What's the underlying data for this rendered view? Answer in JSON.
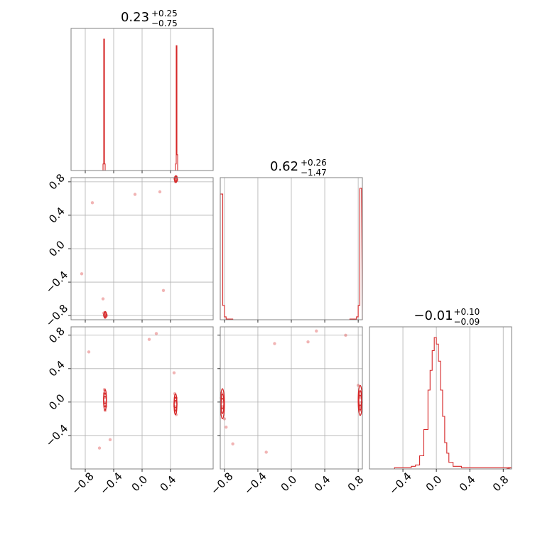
{
  "chart_data": {
    "type": "corner",
    "series_color": "#d62728",
    "grid": true,
    "panels": [
      {
        "role": "histogram-param-1",
        "type": "histogram",
        "title": {
          "value": "0.23",
          "plus": "+0.25",
          "minus": "−0.75"
        },
        "xlim": [
          -1.0,
          1.0
        ],
        "bins_x": [
          -0.56,
          -0.55,
          -0.54,
          -0.53,
          -0.52,
          -0.51,
          0.46,
          0.47,
          0.48,
          0.49,
          0.5,
          0.51
        ],
        "counts": [
          0,
          0.05,
          1.0,
          0.05,
          0.0,
          0.0,
          0.0,
          0.05,
          0.95,
          0.12,
          0.0,
          0.0
        ]
      },
      {
        "role": "scatter-param-2-vs-param-1",
        "type": "scatter",
        "xlim": [
          -1.0,
          1.0
        ],
        "ylim": [
          -0.85,
          0.85
        ],
        "y_ticks": [
          "0.8",
          "0.4",
          "0.0",
          "−0.4",
          "−0.8"
        ],
        "y_tick_values": [
          0.8,
          0.4,
          0.0,
          -0.4,
          -0.8
        ],
        "points": [
          [
            -0.52,
            -0.78
          ],
          [
            -0.53,
            -0.8
          ],
          [
            -0.51,
            -0.79
          ],
          [
            -0.52,
            -0.81
          ],
          [
            -0.54,
            -0.77
          ],
          [
            -0.5,
            -0.8
          ],
          [
            0.47,
            0.85
          ],
          [
            0.48,
            0.83
          ],
          [
            0.46,
            0.84
          ],
          [
            0.48,
            0.86
          ],
          [
            0.49,
            0.82
          ],
          [
            0.47,
            0.8
          ],
          [
            -0.7,
            0.55
          ],
          [
            -0.1,
            0.65
          ],
          [
            0.25,
            0.68
          ],
          [
            -0.55,
            -0.6
          ],
          [
            0.3,
            -0.5
          ],
          [
            -0.85,
            -0.3
          ]
        ]
      },
      {
        "role": "histogram-param-2",
        "type": "histogram",
        "title": {
          "value": "0.62",
          "plus": "+0.26",
          "minus": "−1.47"
        },
        "xlim": [
          -0.85,
          0.85
        ],
        "bins_x": [
          -0.85,
          -0.82,
          -0.8,
          -0.78,
          -0.7,
          0.0,
          0.7,
          0.78,
          0.8,
          0.82
        ],
        "counts": [
          0.88,
          0.1,
          0.02,
          0.005,
          0.0,
          0.0,
          0.005,
          0.02,
          0.1,
          0.92
        ]
      },
      {
        "role": "scatter-param-3-vs-param-1",
        "type": "scatter",
        "xlim": [
          -1.0,
          1.0
        ],
        "ylim": [
          -0.8,
          0.9
        ],
        "y_ticks": [
          "0.8",
          "0.4",
          "0.0",
          "−0.4"
        ],
        "y_tick_values": [
          0.8,
          0.4,
          0.0,
          -0.4
        ],
        "points": [
          [
            -0.52,
            0.05
          ],
          [
            -0.52,
            0.0
          ],
          [
            -0.53,
            0.1
          ],
          [
            -0.51,
            -0.05
          ],
          [
            -0.52,
            -0.1
          ],
          [
            -0.53,
            0.15
          ],
          [
            0.47,
            0.0
          ],
          [
            0.46,
            -0.05
          ],
          [
            0.48,
            0.05
          ],
          [
            0.47,
            -0.1
          ],
          [
            0.46,
            0.1
          ],
          [
            0.48,
            -0.15
          ],
          [
            -0.75,
            0.6
          ],
          [
            0.1,
            0.75
          ],
          [
            -0.45,
            -0.45
          ],
          [
            -0.6,
            -0.55
          ],
          [
            0.45,
            0.35
          ],
          [
            0.2,
            0.82
          ]
        ]
      },
      {
        "role": "scatter-param-3-vs-param-2",
        "type": "scatter",
        "xlim": [
          -0.85,
          0.85
        ],
        "ylim": [
          -0.8,
          0.9
        ],
        "points": [
          [
            -0.83,
            0.0
          ],
          [
            -0.84,
            0.05
          ],
          [
            -0.82,
            -0.05
          ],
          [
            -0.83,
            0.1
          ],
          [
            -0.8,
            -0.2
          ],
          [
            -0.78,
            -0.3
          ],
          [
            0.83,
            -0.05
          ],
          [
            0.84,
            0.0
          ],
          [
            0.82,
            -0.1
          ],
          [
            0.83,
            0.05
          ],
          [
            0.8,
            0.2
          ],
          [
            -0.7,
            -0.5
          ],
          [
            -0.2,
            0.7
          ],
          [
            0.3,
            0.85
          ],
          [
            0.65,
            0.8
          ],
          [
            -0.3,
            -0.6
          ],
          [
            0.2,
            0.72
          ]
        ]
      },
      {
        "role": "histogram-param-3",
        "type": "histogram",
        "title": {
          "value": "−0.01",
          "plus": "+0.10",
          "minus": "−0.09"
        },
        "xlim": [
          -0.8,
          0.9
        ],
        "bins_x": [
          -0.5,
          -0.4,
          -0.3,
          -0.25,
          -0.2,
          -0.15,
          -0.1,
          -0.075,
          -0.05,
          -0.025,
          0.0,
          0.025,
          0.05,
          0.075,
          0.1,
          0.125,
          0.15,
          0.2,
          0.25,
          0.3,
          0.5,
          0.8
        ],
        "counts": [
          0.01,
          0.01,
          0.02,
          0.03,
          0.1,
          0.3,
          0.6,
          0.75,
          0.9,
          1.0,
          0.95,
          0.82,
          0.6,
          0.4,
          0.2,
          0.12,
          0.05,
          0.02,
          0.02,
          0.01,
          0.01,
          0.01
        ]
      }
    ],
    "x_axes": [
      {
        "ticks": [
          "−0.8",
          "−0.4",
          "0.0",
          "0.4"
        ],
        "values": [
          -0.8,
          -0.4,
          0.0,
          0.4
        ]
      },
      {
        "ticks": [
          "−0.8",
          "−0.4",
          "0.0",
          "0.4",
          "0.8"
        ],
        "values": [
          -0.8,
          -0.4,
          0.0,
          0.4,
          0.8
        ]
      },
      {
        "ticks": [
          "−0.4",
          "0.0",
          "0.4",
          "0.8"
        ],
        "values": [
          -0.4,
          0.0,
          0.4,
          0.8
        ]
      }
    ]
  }
}
